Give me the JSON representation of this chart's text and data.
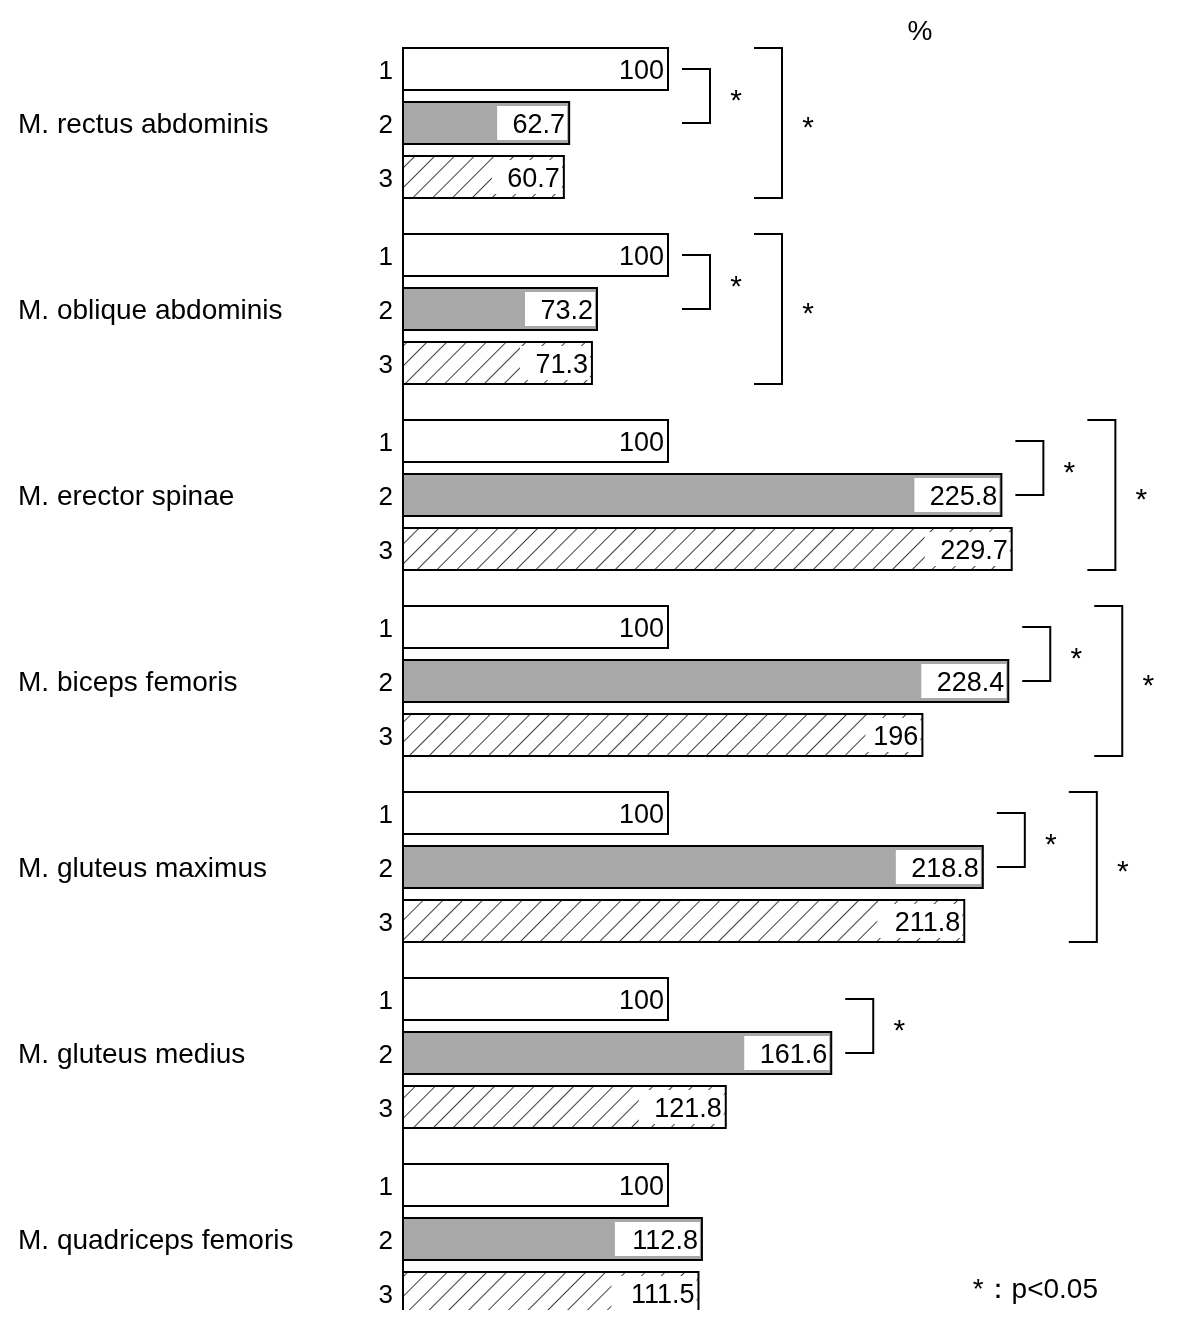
{
  "chart_data": {
    "type": "bar",
    "orientation": "horizontal",
    "xlabel": "%",
    "data_labels": true,
    "categories": [
      "M. rectus abdominis",
      "M. oblique abdominis",
      "M. erector spinae",
      "M. biceps femoris",
      "M. gluteus maximus",
      "M. gluteus medius",
      "M. quadriceps femoris"
    ],
    "series": [
      {
        "name": "1",
        "color": "#ffffff",
        "values": [
          100,
          100,
          100,
          100,
          100,
          100,
          100
        ]
      },
      {
        "name": "2",
        "color": "#a8a8a8",
        "values": [
          62.7,
          73.2,
          225.8,
          228.4,
          218.8,
          161.6,
          112.8
        ]
      },
      {
        "name": "3",
        "color": "#000000",
        "values": [
          60.7,
          71.3,
          229.7,
          196,
          211.8,
          121.8,
          111.5
        ]
      }
    ],
    "annotations": [
      "*",
      "*",
      "*",
      "*",
      "*",
      "*",
      "*",
      "*",
      "*",
      "*",
      "*",
      "*：p<0.05"
    ]
  }
}
